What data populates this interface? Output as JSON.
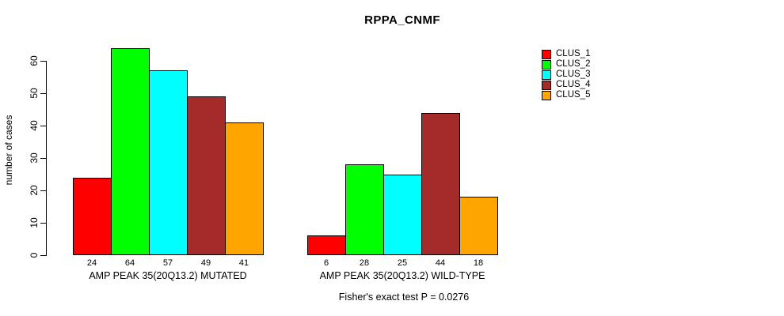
{
  "chart_data": {
    "type": "bar",
    "title": "RPPA_CNMF",
    "ylabel": "number of cases",
    "xlabel": "",
    "ylim": [
      0,
      60
    ],
    "yticks": [
      0,
      10,
      20,
      30,
      40,
      50,
      60
    ],
    "grid": false,
    "legend_position": "top-right",
    "categories": [
      "AMP PEAK 35(20Q13.2) MUTATED",
      "AMP PEAK 35(20Q13.2) WILD-TYPE"
    ],
    "series": [
      {
        "name": "CLUS_1",
        "color": "#FF0000",
        "values": [
          24,
          6
        ]
      },
      {
        "name": "CLUS_2",
        "color": "#00FF00",
        "values": [
          64,
          28
        ]
      },
      {
        "name": "CLUS_3",
        "color": "#00FFFF",
        "values": [
          57,
          25
        ]
      },
      {
        "name": "CLUS_4",
        "color": "#A52A2A",
        "values": [
          49,
          44
        ]
      },
      {
        "name": "CLUS_5",
        "color": "#FFA500",
        "values": [
          41,
          18
        ]
      }
    ],
    "bar_value_labels": [
      [
        "24",
        "64",
        "57",
        "49",
        "41"
      ],
      [
        "6",
        "28",
        "25",
        "44",
        "18"
      ]
    ],
    "annotation": "Fisher's exact test P = 0.0276"
  }
}
